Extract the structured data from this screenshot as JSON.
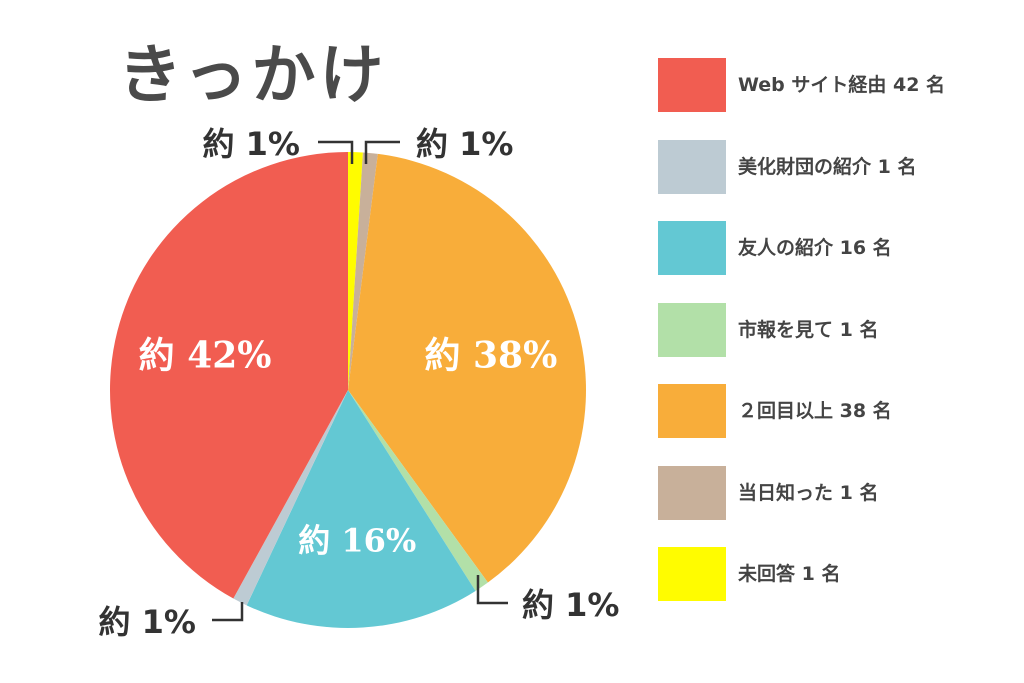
{
  "chart_data": {
    "type": "pie",
    "title": "きっかけ",
    "slices": [
      {
        "label": "未回答",
        "count": 1,
        "color": "#fffc00",
        "percent_label": "約 1%"
      },
      {
        "label": "当日知った",
        "count": 1,
        "color": "#c8b09a",
        "percent_label": "約 1%"
      },
      {
        "label": "２回目以上",
        "count": 38,
        "color": "#f8ad3a",
        "percent_label": "約 38%"
      },
      {
        "label": "市報を見て",
        "count": 1,
        "color": "#b2e0a8",
        "percent_label": "約 1%"
      },
      {
        "label": "友人の紹介",
        "count": 16,
        "color": "#63c8d3",
        "percent_label": "約 16%"
      },
      {
        "label": "美化財団の紹介",
        "count": 1,
        "color": "#bdcbd3",
        "percent_label": "約 1%"
      },
      {
        "label": "Web サイト経由",
        "count": 42,
        "color": "#f15d51",
        "percent_label": "約 42%"
      }
    ],
    "legend": [
      {
        "text": "Web サイト経由 42 名",
        "color": "#f15d51"
      },
      {
        "text": "美化財団の紹介 1 名",
        "color": "#bdcbd3"
      },
      {
        "text": "友人の紹介 16 名",
        "color": "#63c8d3"
      },
      {
        "text": "市報を見て 1 名",
        "color": "#b2e0a8"
      },
      {
        "text": "２回目以上 38 名",
        "color": "#f8ad3a"
      },
      {
        "text": "当日知った 1 名",
        "color": "#c8b09a"
      },
      {
        "text": "未回答 1 名",
        "color": "#fffc00"
      }
    ],
    "legend_position": "right"
  }
}
